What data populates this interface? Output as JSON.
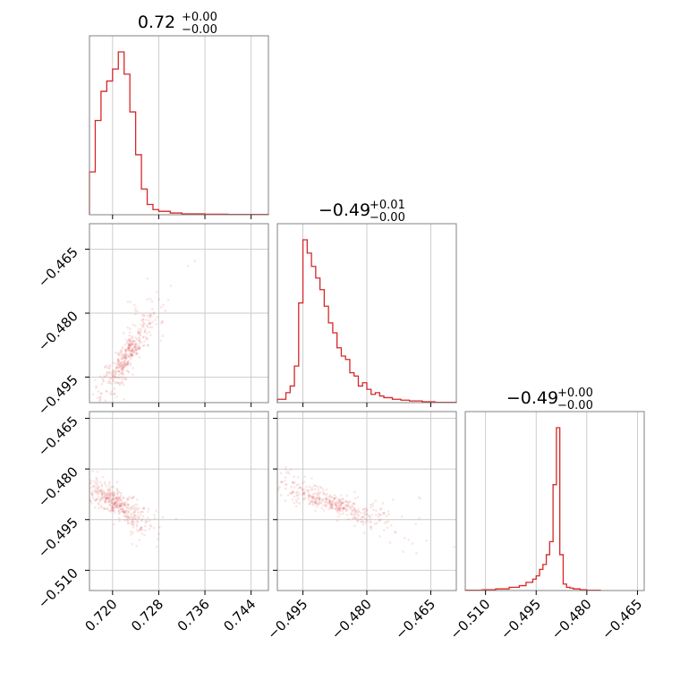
{
  "chart_data": {
    "type": "corner",
    "color": "#d62728",
    "parameters": [
      {
        "index": 0,
        "median": 0.7215,
        "title": {
          "value": "0.72",
          "plus": "+0.00",
          "minus": "−0.00"
        },
        "range": [
          0.716,
          0.747
        ],
        "ticks": [
          0.72,
          0.728,
          0.736,
          0.744
        ],
        "tick_labels": [
          "0.720",
          "0.728",
          "0.736",
          "0.744"
        ]
      },
      {
        "index": 1,
        "median": -0.4925,
        "title": {
          "value": "−0.49",
          "plus": "+0.01",
          "minus": "−0.00"
        },
        "range": [
          -0.501,
          -0.459
        ],
        "ticks": [
          -0.495,
          -0.48,
          -0.465
        ],
        "tick_labels": [
          "−0.495",
          "−0.480",
          "−0.465"
        ]
      },
      {
        "index": 2,
        "median": -0.489,
        "title": {
          "value": "−0.49",
          "plus": "+0.00",
          "minus": "−0.00"
        },
        "range": [
          -0.516,
          -0.463
        ],
        "ticks": [
          -0.51,
          -0.495,
          -0.48,
          -0.465
        ],
        "tick_labels": [
          "−0.510",
          "−0.495",
          "−0.480",
          "−0.465"
        ]
      }
    ],
    "histograms": [
      {
        "param": 0,
        "bins": [
          0.716,
          0.717,
          0.718,
          0.719,
          0.72,
          0.721,
          0.722,
          0.723,
          0.724,
          0.725,
          0.726,
          0.727,
          0.728,
          0.73,
          0.732,
          0.736,
          0.74,
          0.744,
          0.747
        ],
        "counts": [
          25,
          55,
          72,
          78,
          85,
          95,
          82,
          60,
          35,
          15,
          6,
          3,
          2,
          1,
          0.5,
          0.3,
          0.2,
          0.2
        ]
      },
      {
        "param": 1,
        "bins": [
          -0.501,
          -0.499,
          -0.498,
          -0.497,
          -0.496,
          -0.495,
          -0.494,
          -0.493,
          -0.492,
          -0.491,
          -0.49,
          -0.489,
          -0.488,
          -0.487,
          -0.486,
          -0.485,
          -0.484,
          -0.483,
          -0.482,
          -0.481,
          -0.48,
          -0.479,
          -0.478,
          -0.477,
          -0.476,
          -0.474,
          -0.472,
          -0.47,
          -0.467,
          -0.464,
          -0.459
        ],
        "counts": [
          2,
          6,
          10,
          22,
          60,
          98,
          90,
          82,
          75,
          68,
          58,
          48,
          42,
          33,
          28,
          26,
          18,
          16,
          10,
          12,
          8,
          5,
          6,
          4,
          3,
          2,
          1.5,
          1,
          0.5,
          0.2
        ]
      },
      {
        "param": 2,
        "bins": [
          -0.516,
          -0.511,
          -0.507,
          -0.503,
          -0.5,
          -0.498,
          -0.496,
          -0.495,
          -0.494,
          -0.493,
          -0.492,
          -0.491,
          -0.49,
          -0.489,
          -0.488,
          -0.487,
          -0.486,
          -0.485,
          -0.484,
          -0.482,
          -0.48,
          -0.476
        ],
        "counts": [
          0.2,
          0.5,
          1,
          2,
          3,
          5,
          7,
          9,
          13,
          16,
          22,
          30,
          65,
          100,
          22,
          4,
          2,
          1.5,
          1,
          0.5,
          0.2
        ]
      }
    ],
    "panels": [
      {
        "x": 0,
        "y": 1,
        "center": [
          0.7225,
          -0.49
        ],
        "direction": [
          0.0045,
          0.011
        ]
      },
      {
        "x": 0,
        "y": 2,
        "center": [
          0.7205,
          -0.49
        ],
        "direction": [
          0.0045,
          -0.005
        ]
      },
      {
        "x": 1,
        "y": 2,
        "center": [
          -0.488,
          -0.49
        ],
        "direction": [
          0.012,
          -0.0055
        ]
      }
    ]
  }
}
